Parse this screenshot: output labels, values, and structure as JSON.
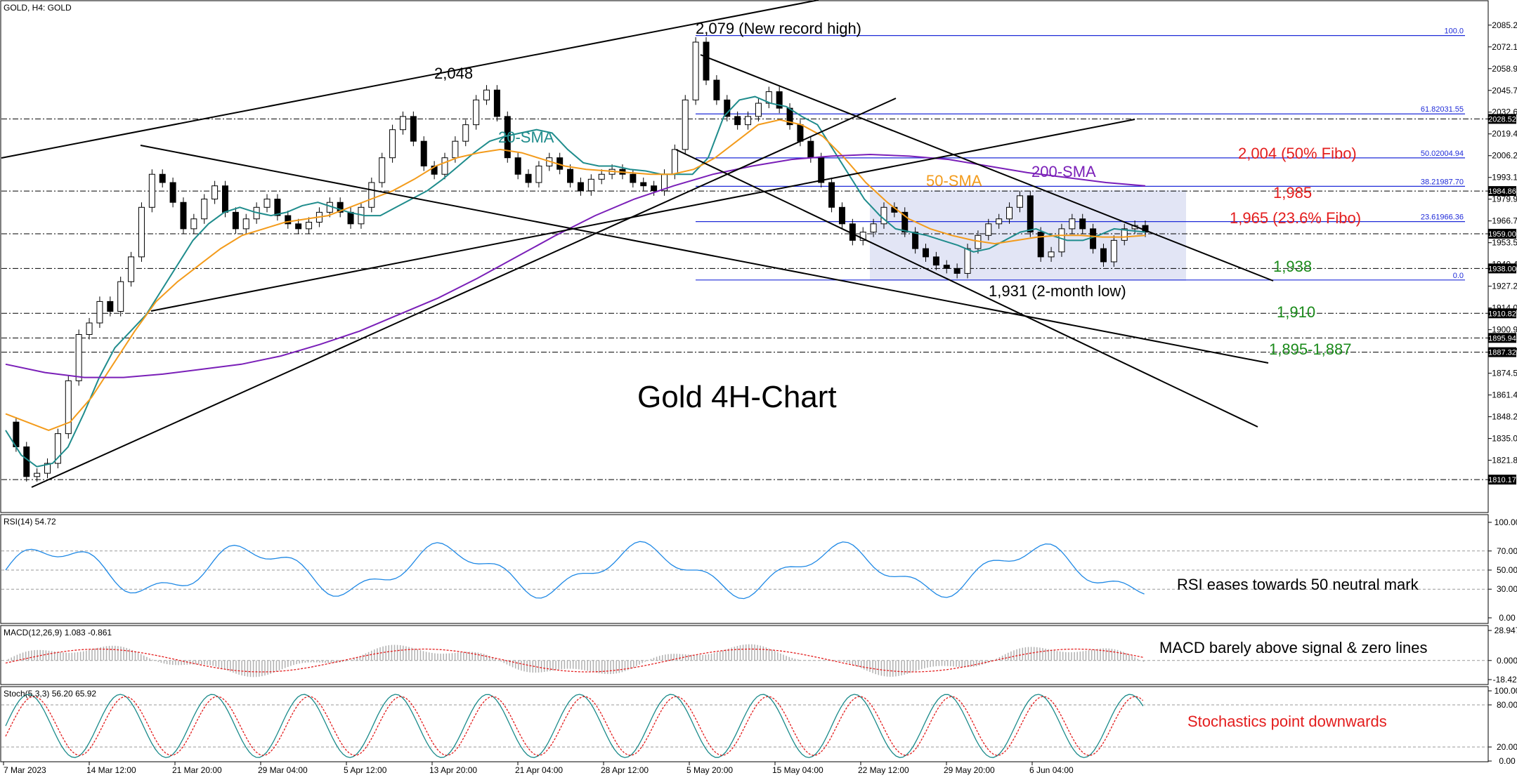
{
  "chart_data": {
    "type": "line",
    "symbol_header": "GOLD, H4:  GOLD",
    "title": "Gold 4H-Chart",
    "ylim": [
      1803,
      2092
    ],
    "y_ticks": [
      "2085.29",
      "2072.12",
      "2058.95",
      "2045.78",
      "2032.61",
      "2019.44",
      "2006.27",
      "1993.10",
      "1979.93",
      "1966.76",
      "1953.59",
      "1940.42",
      "1927.25",
      "1914.08",
      "1900.91",
      "1887.74",
      "1874.57",
      "1861.40",
      "1848.23",
      "1835.06",
      "1821.89"
    ],
    "x_ticks": [
      "7 Mar 2023",
      "14 Mar 12:00",
      "21 Mar 20:00",
      "29 Mar 04:00",
      "5 Apr 12:00",
      "13 Apr 20:00",
      "21 Apr 04:00",
      "28 Apr 12:00",
      "5 May 20:00",
      "15 May 04:00",
      "22 May 12:00",
      "29 May 20:00",
      "6 Jun 04:00"
    ],
    "price_levels": [
      {
        "value": 2028.52,
        "label": "2028.52"
      },
      {
        "value": 1984.86,
        "label": "1984.86"
      },
      {
        "value": 1959.0,
        "label": "1959.00"
      },
      {
        "value": 1938.0,
        "label": "1938.00"
      },
      {
        "value": 1910.82,
        "label": "1910.82"
      },
      {
        "value": 1895.94,
        "label": "1895.94"
      },
      {
        "value": 1887.32,
        "label": "1887.32"
      },
      {
        "value": 1810.17,
        "label": "1810.17"
      }
    ],
    "fibonacci": [
      {
        "value": 2079.0,
        "label": "100.0"
      },
      {
        "value": 2031.55,
        "label": "61.82031.55"
      },
      {
        "value": 2004.94,
        "label": "50.02004.94"
      },
      {
        "value": 1987.7,
        "label": "38.21987.70"
      },
      {
        "value": 1966.36,
        "label": "23.61966.36"
      },
      {
        "value": 1931.0,
        "label": "0.0"
      }
    ],
    "annotations": {
      "record_high": "2,079 (New record high)",
      "peak_2048": "2,048",
      "sma20": "20-SMA",
      "sma50": "50-SMA",
      "sma200": "200-SMA",
      "fibo50": "2,004 (50% Fibo)",
      "r1985": "1,985",
      "fibo236": "1,965 (23.6% Fibo)",
      "s1938": "1,938",
      "low1931": "1,931 (2-month low)",
      "s1910": "1,910",
      "s1895": "1,895-1,887"
    },
    "series": [
      {
        "name": "GOLD",
        "color": "#000000",
        "values": [
          1845,
          1830,
          1812,
          1814,
          1820,
          1838,
          1870,
          1898,
          1905,
          1918,
          1912,
          1930,
          1945,
          1975,
          1995,
          1990,
          1978,
          1962,
          1968,
          1980,
          1988,
          1972,
          1962,
          1968,
          1975,
          1980,
          1970,
          1965,
          1962,
          1966,
          1972,
          1978,
          1972,
          1965,
          1975,
          1990,
          2005,
          2022,
          2030,
          2015,
          2000,
          1995,
          2005,
          2015,
          2025,
          2040,
          2046,
          2030,
          2005,
          1995,
          1990,
          2000,
          2005,
          1998,
          1990,
          1985,
          1992,
          1995,
          1998,
          1995,
          1990,
          1988,
          1985,
          1995,
          2010,
          2040,
          2075,
          2052,
          2040,
          2030,
          2025,
          2030,
          2038,
          2045,
          2035,
          2025,
          2015,
          2005,
          1990,
          1975,
          1965,
          1955,
          1960,
          1965,
          1975,
          1972,
          1960,
          1950,
          1945,
          1940,
          1938,
          1935,
          1950,
          1958,
          1965,
          1968,
          1975,
          1982,
          1960,
          1945,
          1948,
          1962,
          1968,
          1962,
          1950,
          1942,
          1955,
          1962,
          1964,
          1960
        ]
      },
      {
        "name": "20-SMA",
        "color": "#1f8c8c",
        "values": [
          1840,
          1825,
          1818,
          1820,
          1830,
          1850,
          1872,
          1890,
          1900,
          1910,
          1925,
          1940,
          1955,
          1965,
          1972,
          1975,
          1972,
          1970,
          1972,
          1976,
          1978,
          1975,
          1972,
          1970,
          1970,
          1975,
          1980,
          1985,
          1992,
          2000,
          2008,
          2015,
          2018,
          2020,
          2022,
          2020,
          2010,
          2002,
          2000,
          2000,
          1998,
          1997,
          1995,
          1995,
          1995,
          2005,
          2030,
          2040,
          2042,
          2038,
          2036,
          2030,
          2025,
          2010,
          1995,
          1980,
          1970,
          1962,
          1960,
          1958,
          1955,
          1952,
          1948,
          1950,
          1955,
          1960,
          1962,
          1958,
          1955,
          1955,
          1958,
          1962,
          1961,
          1960
        ]
      },
      {
        "name": "50-SMA",
        "color": "#f39b1b",
        "values": [
          1850,
          1845,
          1840,
          1845,
          1860,
          1880,
          1900,
          1918,
          1930,
          1940,
          1950,
          1958,
          1962,
          1966,
          1968,
          1970,
          1975,
          1980,
          1985,
          1992,
          2000,
          2005,
          2008,
          2010,
          2008,
          2004,
          2000,
          1998,
          1997,
          1996,
          1995,
          1995,
          1998,
          2005,
          2015,
          2025,
          2028,
          2025,
          2018,
          2005,
          1990,
          1978,
          1968,
          1962,
          1958,
          1955,
          1953,
          1955,
          1957,
          1958,
          1958,
          1957,
          1957,
          1958
        ]
      },
      {
        "name": "200-SMA",
        "color": "#7a1fb8",
        "values": [
          1880,
          1875,
          1872,
          1872,
          1874,
          1877,
          1880,
          1885,
          1892,
          1900,
          1910,
          1920,
          1932,
          1945,
          1958,
          1970,
          1980,
          1988,
          1995,
          2000,
          2004,
          2006,
          2007,
          2006,
          2004,
          2000,
          1996,
          1993,
          1990,
          1988
        ]
      }
    ],
    "panels": [
      {
        "name": "rsi",
        "header": "RSI(14) 54.72",
        "ticks": [
          "100.00",
          "70.00",
          "50.00",
          "30.00",
          "0.00"
        ],
        "ylim": [
          0,
          100
        ],
        "note": "RSI eases towards 50 neutral mark",
        "note_color": "#000000"
      },
      {
        "name": "macd",
        "header": "MACD(12,26,9) 1.083 -0.861",
        "ticks": [
          "28.947",
          "0.000",
          "-18.423"
        ],
        "ylim": [
          -18.423,
          28.947
        ],
        "note": "MACD barely above signal & zero lines",
        "note_color": "#000000"
      },
      {
        "name": "stoch",
        "header": "Stoch(5,3,3) 56.20 65.92",
        "ticks": [
          "100.00",
          "80.00",
          "20.00",
          "0.00"
        ],
        "ylim": [
          0,
          100
        ],
        "note": "Stochastics point downwards",
        "note_color": "#e31d1d"
      }
    ]
  },
  "colors": {
    "support": "#1a8a1a",
    "resistance": "#e31d1d",
    "fib_line": "#1f2bd8",
    "range_box": "#d8dcf2"
  }
}
